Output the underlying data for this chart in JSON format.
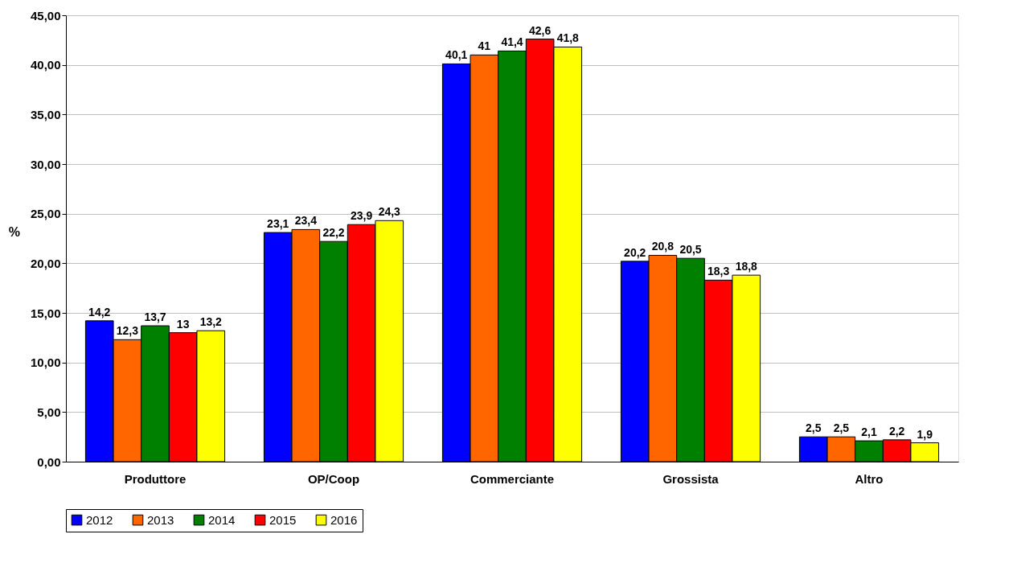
{
  "chart_data": {
    "type": "bar",
    "ylabel": "%",
    "categories": [
      "Produttore",
      "OP/Coop",
      "Commerciante",
      "Grossista",
      "Altro"
    ],
    "series": [
      {
        "name": "2012",
        "color": "#0000ff",
        "values": [
          14.2,
          23.1,
          40.1,
          20.2,
          2.5
        ],
        "value_labels": [
          "14,2",
          "23,1",
          "40,1",
          "20,2",
          "2,5"
        ]
      },
      {
        "name": "2013",
        "color": "#ff6600",
        "values": [
          12.3,
          23.4,
          41,
          20.8,
          2.5
        ],
        "value_labels": [
          "12,3",
          "23,4",
          "41",
          "20,8",
          "2,5"
        ]
      },
      {
        "name": "2014",
        "color": "#008000",
        "values": [
          13.7,
          22.2,
          41.4,
          20.5,
          2.1
        ],
        "value_labels": [
          "13,7",
          "22,2",
          "41,4",
          "20,5",
          "2,1"
        ]
      },
      {
        "name": "2015",
        "color": "#ff0000",
        "values": [
          13,
          23.9,
          42.6,
          18.3,
          2.2
        ],
        "value_labels": [
          "13",
          "23,9",
          "42,6",
          "18,3",
          "2,2"
        ]
      },
      {
        "name": "2016",
        "color": "#ffff00",
        "values": [
          13.2,
          24.3,
          41.8,
          18.8,
          1.9
        ],
        "value_labels": [
          "13,2",
          "24,3",
          "41,8",
          "18,8",
          "1,9"
        ]
      }
    ],
    "ylim": [
      0,
      45
    ],
    "yticks": [
      {
        "value": 0,
        "label": "0,00"
      },
      {
        "value": 5,
        "label": "5,00"
      },
      {
        "value": 10,
        "label": "10,00"
      },
      {
        "value": 15,
        "label": "15,00"
      },
      {
        "value": 20,
        "label": "20,00"
      },
      {
        "value": 25,
        "label": "25,00"
      },
      {
        "value": 30,
        "label": "30,00"
      },
      {
        "value": 35,
        "label": "35,00"
      },
      {
        "value": 40,
        "label": "40,00"
      },
      {
        "value": 45,
        "label": "45,00"
      }
    ],
    "grid": "y",
    "legend": "bottom"
  }
}
